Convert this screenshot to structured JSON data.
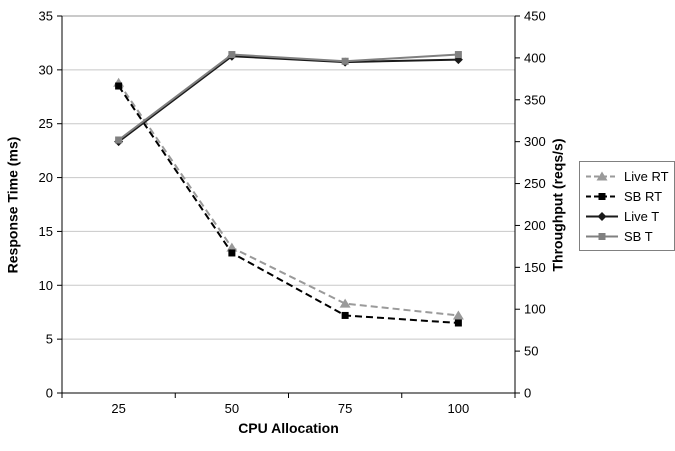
{
  "chart_data": {
    "type": "line",
    "title": "",
    "xlabel": "CPU Allocation",
    "categories": [
      "25",
      "50",
      "75",
      "100"
    ],
    "axes": {
      "left": {
        "label": "Response Time (ms)",
        "min": 0,
        "max": 35,
        "ticks": [
          0,
          5,
          10,
          15,
          20,
          25,
          30,
          35
        ]
      },
      "right": {
        "label": "Throughput (reqs/s)",
        "min": 0,
        "max": 450,
        "ticks": [
          0,
          50,
          100,
          150,
          200,
          250,
          300,
          350,
          400,
          450
        ]
      }
    },
    "grid": "horizontal",
    "legend_position": "right",
    "series": [
      {
        "name": "Live RT",
        "axis": "left",
        "values": [
          28.8,
          13.5,
          8.3,
          7.2
        ],
        "color": "#9a9a9a",
        "line_style": "dashed",
        "marker": "triangle"
      },
      {
        "name": "SB RT",
        "axis": "left",
        "values": [
          28.5,
          13.0,
          7.2,
          6.5
        ],
        "color": "#000000",
        "line_style": "dashed",
        "marker": "square"
      },
      {
        "name": "Live T",
        "axis": "right",
        "values": [
          300,
          402,
          395,
          398
        ],
        "color": "#1a1a1a",
        "line_style": "solid",
        "marker": "diamond"
      },
      {
        "name": "SB T",
        "axis": "right",
        "values": [
          302,
          404,
          396,
          404
        ],
        "color": "#808080",
        "line_style": "solid",
        "marker": "square"
      }
    ],
    "colors": {
      "gridline": "#c8c8c8",
      "plot_border": "#969696",
      "axis": "#000000",
      "background": "#ffffff",
      "text": "#000000"
    }
  }
}
